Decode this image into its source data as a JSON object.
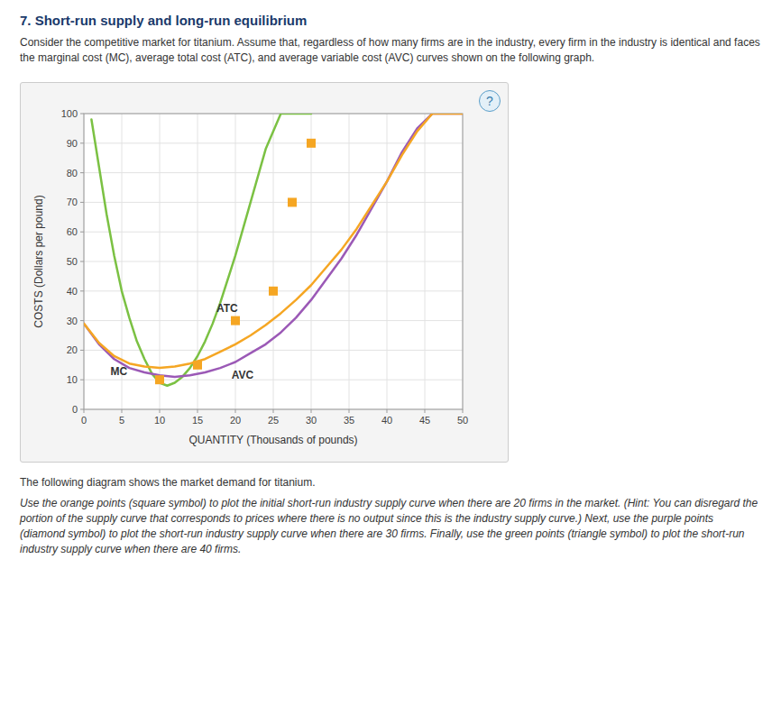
{
  "chart_data": {
    "type": "line",
    "title": "7. Short-run supply and long-run equilibrium",
    "subtitle": [
      "Consider the competitive market for titanium. Assume that, regardless of how many firms are in the industry, every firm in the industry is identical",
      "and faces the marginal cost (MC), average total cost (ATC), and average variable cost (AVC) curves shown on the following graph."
    ],
    "footer": [
      "The following diagram shows the market demand for titanium.",
      "Use the orange points (square symbol) to plot the initial short-run industry supply curve when there are 20 firms in the market. (Hint: You can",
      "disregard the portion of the supply curve that corresponds to prices where there is no output since this is the industry supply curve.) Next, use the",
      "purple points (diamond symbol) to plot the short-run industry supply curve when there are 30 firms. Finally, use the green points (triangle symbol) to",
      "plot the short-run industry supply curve when there are 40 firms."
    ],
    "icon": "?",
    "xlabel": "QUANTITY (Thousands of pounds)",
    "ylabel": "COSTS (Dollars per pound)",
    "xlim": [
      0,
      50
    ],
    "ylim": [
      0,
      100
    ],
    "xticks": [
      0,
      5,
      10,
      15,
      20,
      25,
      30,
      35,
      40,
      45,
      50
    ],
    "yticks": [
      0,
      10,
      20,
      30,
      40,
      50,
      60,
      70,
      80,
      90,
      100
    ],
    "grid": true,
    "series": [
      {
        "type": "line",
        "color": "#7bc143",
        "x": [
          1,
          2,
          3,
          4,
          5,
          6,
          7,
          8,
          9,
          10,
          11,
          12,
          13,
          14,
          15,
          16,
          17,
          18,
          20,
          22,
          24,
          26,
          28,
          30
        ],
        "values": [
          98,
          82,
          66,
          52,
          40,
          31,
          23,
          17,
          12,
          9,
          8,
          9,
          11,
          14,
          18,
          23,
          29,
          36,
          52,
          70,
          88,
          100,
          100,
          100
        ]
      },
      {
        "type": "line",
        "color": "#9b59b6",
        "x": [
          0,
          2,
          4,
          6,
          8,
          10,
          12,
          14,
          16,
          18,
          20,
          22,
          24,
          26,
          28,
          30,
          32,
          34,
          36,
          38,
          40,
          42,
          44,
          46,
          48,
          50
        ],
        "values": [
          29,
          22,
          17,
          14,
          12.5,
          11.5,
          11,
          11.5,
          12.5,
          14,
          16,
          19,
          22,
          26,
          31,
          37,
          44,
          51,
          59,
          68,
          77,
          87,
          95,
          100,
          100,
          100
        ]
      },
      {
        "type": "line",
        "color": "#f5a623",
        "x": [
          0,
          2,
          4,
          6,
          8,
          10,
          12,
          14,
          16,
          18,
          20,
          22,
          24,
          26,
          28,
          30,
          32,
          34,
          36,
          38,
          40,
          42,
          44,
          46,
          48,
          50
        ],
        "values": [
          29,
          22.5,
          18,
          15.5,
          14.5,
          14,
          14.5,
          15.5,
          17,
          19.5,
          22,
          25,
          28.5,
          32.5,
          37,
          42,
          48,
          54,
          61,
          69,
          77,
          86,
          94,
          100,
          100,
          100
        ]
      },
      {
        "type": "scatter",
        "marker": "square",
        "color": "#f5a623",
        "x": [
          10,
          15,
          20,
          25,
          27.5,
          30
        ],
        "values": [
          10,
          15,
          30,
          40,
          70,
          90
        ]
      }
    ],
    "annotations": [
      {
        "text": "MC",
        "x": 3.5,
        "y": 11.5
      },
      {
        "text": "ATC",
        "x": 17.5,
        "y": 33
      },
      {
        "text": "AVC",
        "x": 19.5,
        "y": 10.5
      }
    ]
  }
}
